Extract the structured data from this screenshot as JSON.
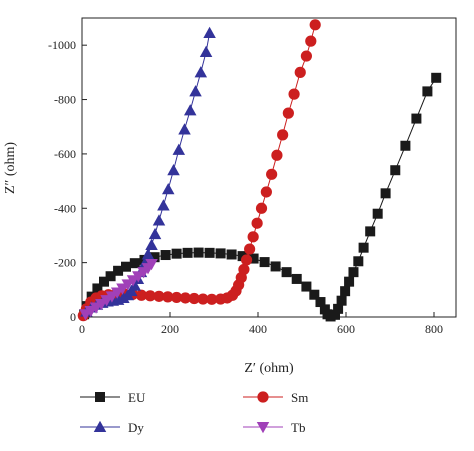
{
  "chart_data": {
    "type": "scatter",
    "title": "",
    "xlabel": "Z′ (ohm)",
    "ylabel": "Z″ (ohm)",
    "xlim": [
      0,
      850
    ],
    "ylim": [
      0,
      -1100
    ],
    "xticks": [
      0,
      200,
      400,
      600,
      800
    ],
    "xtick_labels": [
      "0",
      "200",
      "400",
      "600",
      "800"
    ],
    "yticks": [
      0,
      -200,
      -400,
      -600,
      -800,
      -1000
    ],
    "ytick_labels": [
      "0",
      "-200",
      "-400",
      "-600",
      "-800",
      "-1000"
    ],
    "grid": false,
    "legend_position": "bottom",
    "series": [
      {
        "name": "EU",
        "color": "#1a1a1a",
        "marker": "square",
        "points": [
          [
            5,
            -10
          ],
          [
            12,
            -40
          ],
          [
            22,
            -75
          ],
          [
            35,
            -105
          ],
          [
            50,
            -130
          ],
          [
            65,
            -150
          ],
          [
            82,
            -170
          ],
          [
            100,
            -185
          ],
          [
            120,
            -198
          ],
          [
            142,
            -210
          ],
          [
            165,
            -220
          ],
          [
            190,
            -228
          ],
          [
            215,
            -233
          ],
          [
            240,
            -236
          ],
          [
            265,
            -237
          ],
          [
            290,
            -236
          ],
          [
            315,
            -234
          ],
          [
            340,
            -230
          ],
          [
            365,
            -224
          ],
          [
            390,
            -215
          ],
          [
            415,
            -202
          ],
          [
            440,
            -186
          ],
          [
            465,
            -165
          ],
          [
            488,
            -140
          ],
          [
            510,
            -112
          ],
          [
            528,
            -82
          ],
          [
            542,
            -55
          ],
          [
            552,
            -28
          ],
          [
            558,
            -10
          ],
          [
            565,
            -2
          ],
          [
            575,
            -8
          ],
          [
            582,
            -30
          ],
          [
            590,
            -60
          ],
          [
            598,
            -95
          ],
          [
            607,
            -130
          ],
          [
            617,
            -165
          ],
          [
            628,
            -205
          ],
          [
            640,
            -255
          ],
          [
            655,
            -315
          ],
          [
            672,
            -380
          ],
          [
            690,
            -455
          ],
          [
            712,
            -540
          ],
          [
            735,
            -630
          ],
          [
            760,
            -730
          ],
          [
            785,
            -830
          ],
          [
            805,
            -880
          ]
        ]
      },
      {
        "name": "Sm",
        "color": "#cc1f1f",
        "marker": "circle",
        "points": [
          [
            3,
            -5
          ],
          [
            10,
            -30
          ],
          [
            20,
            -55
          ],
          [
            32,
            -70
          ],
          [
            45,
            -78
          ],
          [
            60,
            -82
          ],
          [
            78,
            -85
          ],
          [
            96,
            -85
          ],
          [
            115,
            -83
          ],
          [
            135,
            -80
          ],
          [
            155,
            -78
          ],
          [
            175,
            -76
          ],
          [
            195,
            -74
          ],
          [
            215,
            -72
          ],
          [
            235,
            -70
          ],
          [
            255,
            -68
          ],
          [
            275,
            -66
          ],
          [
            295,
            -65
          ],
          [
            315,
            -66
          ],
          [
            330,
            -70
          ],
          [
            342,
            -80
          ],
          [
            350,
            -96
          ],
          [
            356,
            -118
          ],
          [
            362,
            -145
          ],
          [
            368,
            -175
          ],
          [
            374,
            -210
          ],
          [
            381,
            -250
          ],
          [
            389,
            -295
          ],
          [
            398,
            -345
          ],
          [
            408,
            -400
          ],
          [
            419,
            -460
          ],
          [
            431,
            -525
          ],
          [
            443,
            -595
          ],
          [
            456,
            -670
          ],
          [
            469,
            -750
          ],
          [
            482,
            -820
          ],
          [
            496,
            -900
          ],
          [
            510,
            -960
          ],
          [
            520,
            -1015
          ],
          [
            530,
            -1075
          ]
        ]
      },
      {
        "name": "Dy",
        "color": "#33339a",
        "marker": "triangle-up",
        "points": [
          [
            10,
            -20
          ],
          [
            22,
            -35
          ],
          [
            34,
            -45
          ],
          [
            46,
            -52
          ],
          [
            58,
            -57
          ],
          [
            70,
            -60
          ],
          [
            82,
            -63
          ],
          [
            94,
            -70
          ],
          [
            104,
            -80
          ],
          [
            112,
            -95
          ],
          [
            120,
            -115
          ],
          [
            127,
            -140
          ],
          [
            134,
            -165
          ],
          [
            142,
            -195
          ],
          [
            150,
            -230
          ],
          [
            158,
            -265
          ],
          [
            166,
            -305
          ],
          [
            175,
            -355
          ],
          [
            185,
            -410
          ],
          [
            196,
            -470
          ],
          [
            208,
            -540
          ],
          [
            220,
            -615
          ],
          [
            233,
            -690
          ],
          [
            246,
            -760
          ],
          [
            258,
            -830
          ],
          [
            270,
            -900
          ],
          [
            282,
            -975
          ],
          [
            290,
            -1045
          ]
        ]
      },
      {
        "name": "Tb",
        "color": "#a040b8",
        "marker": "triangle-down",
        "points": [
          [
            8,
            -10
          ],
          [
            20,
            -22
          ],
          [
            32,
            -35
          ],
          [
            44,
            -48
          ],
          [
            56,
            -62
          ],
          [
            68,
            -76
          ],
          [
            80,
            -90
          ],
          [
            92,
            -105
          ],
          [
            104,
            -120
          ],
          [
            116,
            -135
          ],
          [
            128,
            -150
          ],
          [
            140,
            -165
          ],
          [
            150,
            -180
          ],
          [
            158,
            -195
          ]
        ]
      }
    ],
    "legend": [
      {
        "name": "EU",
        "marker": "square",
        "color": "#1a1a1a"
      },
      {
        "name": "Sm",
        "marker": "circle",
        "color": "#cc1f1f"
      },
      {
        "name": "Dy",
        "marker": "triangle-up",
        "color": "#33339a"
      },
      {
        "name": "Tb",
        "marker": "triangle-down",
        "color": "#a040b8"
      }
    ]
  }
}
